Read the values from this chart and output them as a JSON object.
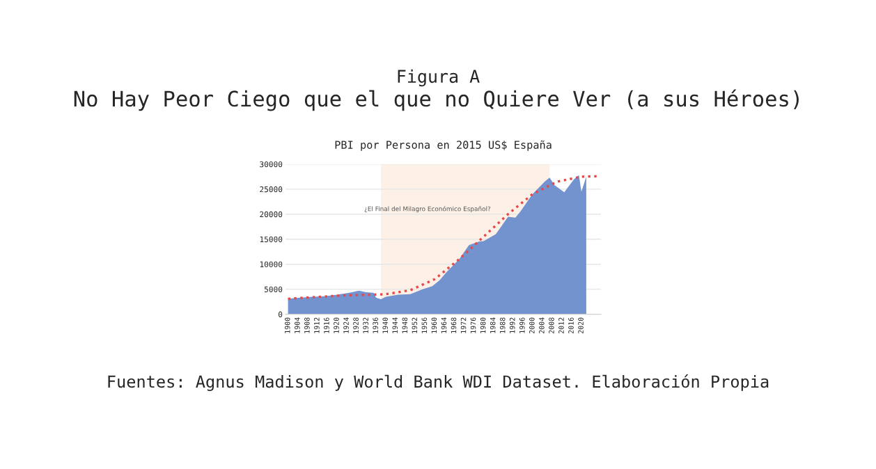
{
  "chart_data": {
    "type": "area",
    "title": "No Hay Peor Ciego que el que no Quiere Ver (a sus Héroes)",
    "subtitle": "PBI por Persona en 2015 US$ España",
    "annotations": [
      "Figura A",
      "Fuentes: Agnus Madison y World Bank WDI Dataset. Elaboración Propia",
      "¿El Final del Milagro Económico Español?"
    ],
    "series": [
      {
        "color": "#7393cf",
        "x": [
          1900,
          1905,
          1910,
          1915,
          1920,
          1925,
          1929,
          1932,
          1935,
          1936,
          1938,
          1940,
          1945,
          1950,
          1955,
          1959,
          1962,
          1965,
          1970,
          1974,
          1975,
          1978,
          1980,
          1985,
          1990,
          1993,
          1995,
          2000,
          2005,
          2007,
          2009,
          2013,
          2017,
          2019,
          2020,
          2021,
          2022
        ],
        "values": [
          3100,
          3300,
          3500,
          3600,
          3900,
          4300,
          4700,
          4400,
          4300,
          3300,
          3000,
          3500,
          3900,
          4000,
          5000,
          5600,
          6800,
          8500,
          11000,
          13800,
          14000,
          14500,
          14600,
          16000,
          19500,
          19300,
          20500,
          24000,
          26500,
          27300,
          25800,
          24400,
          27000,
          27800,
          24500,
          26000,
          27500
        ]
      },
      {
        "type": "line",
        "color": "#e8474a",
        "line_style": "dotted",
        "marker": "none",
        "x": [
          1900,
          1920,
          1940,
          1950,
          1960,
          1970,
          1980,
          1990,
          2000,
          2010,
          2020,
          2027
        ],
        "values": [
          3100,
          3700,
          4000,
          4800,
          7000,
          11000,
          15500,
          20000,
          24000,
          26500,
          27500,
          27600
        ]
      }
    ],
    "bands": [
      {
        "axis": "x",
        "from": 1938,
        "to": 2007,
        "color": "#fdf0e6"
      }
    ],
    "xlim": [
      1899,
      2028
    ],
    "xticks": [
      1900,
      1904,
      1908,
      1912,
      1916,
      1920,
      1924,
      1928,
      1932,
      1936,
      1940,
      1944,
      1948,
      1952,
      1956,
      1960,
      1964,
      1968,
      1972,
      1976,
      1980,
      1984,
      1988,
      1992,
      1996,
      2000,
      2004,
      2008,
      2012,
      2016,
      2020
    ],
    "ylim": [
      0,
      30000
    ],
    "yticks": [
      0,
      5000,
      10000,
      15000,
      20000,
      25000,
      30000
    ],
    "grid": "y",
    "legend": false
  }
}
